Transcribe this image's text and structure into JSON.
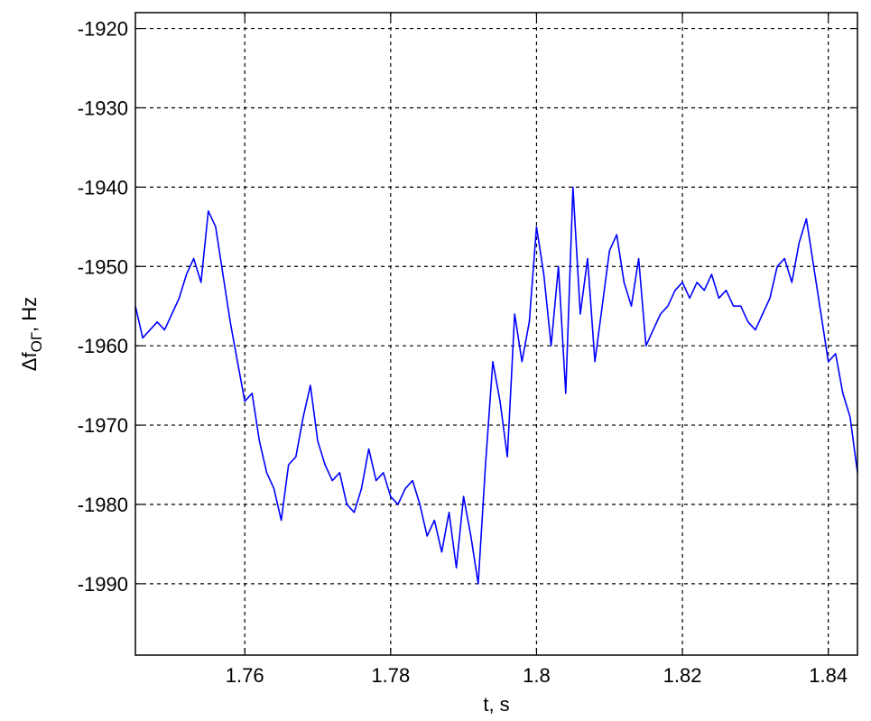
{
  "chart_data": {
    "type": "line",
    "xlabel": "t, s",
    "ylabel_main": "Δf",
    "ylabel_sub": "OГ",
    "ylabel_tail": ", Hz",
    "xlim": [
      1.745,
      1.844
    ],
    "ylim": [
      -1999,
      -1918
    ],
    "xticks": [
      1.76,
      1.78,
      1.8,
      1.82,
      1.84
    ],
    "xtick_labels": [
      "1.76",
      "1.78",
      "1.8",
      "1.82",
      "1.84"
    ],
    "yticks": [
      -1920,
      -1930,
      -1940,
      -1950,
      -1960,
      -1970,
      -1980,
      -1990
    ],
    "ytick_labels": [
      "-1920",
      "-1930",
      "-1940",
      "-1950",
      "-1960",
      "-1970",
      "-1980",
      "-1990"
    ],
    "grid": true,
    "series_color": "#0000ff",
    "series": [
      {
        "x": [
          1.745,
          1.746,
          1.747,
          1.748,
          1.749,
          1.75,
          1.751,
          1.752,
          1.753,
          1.754,
          1.755,
          1.756,
          1.757,
          1.758,
          1.759,
          1.76,
          1.761,
          1.762,
          1.763,
          1.764,
          1.765,
          1.766,
          1.767,
          1.768,
          1.769,
          1.77,
          1.771,
          1.772,
          1.773,
          1.774,
          1.775,
          1.776,
          1.777,
          1.778,
          1.779,
          1.78,
          1.781,
          1.782,
          1.783,
          1.784,
          1.785,
          1.786,
          1.787,
          1.788,
          1.789,
          1.79,
          1.791,
          1.792,
          1.793,
          1.794,
          1.795,
          1.796,
          1.797,
          1.798,
          1.799,
          1.8,
          1.801,
          1.802,
          1.803,
          1.804,
          1.805,
          1.806,
          1.807,
          1.808,
          1.809,
          1.81,
          1.811,
          1.812,
          1.813,
          1.814,
          1.815,
          1.816,
          1.817,
          1.818,
          1.819,
          1.82,
          1.821,
          1.822,
          1.823,
          1.824,
          1.825,
          1.826,
          1.827,
          1.828,
          1.829,
          1.83,
          1.831,
          1.832,
          1.833,
          1.834,
          1.835,
          1.836,
          1.837,
          1.838,
          1.839,
          1.84,
          1.841,
          1.842,
          1.843,
          1.844
        ],
        "values": [
          -1955,
          -1959,
          -1958,
          -1957,
          -1958,
          -1956,
          -1954,
          -1951,
          -1949,
          -1952,
          -1943,
          -1945,
          -1951,
          -1957,
          -1962,
          -1967,
          -1966,
          -1972,
          -1976,
          -1978,
          -1982,
          -1975,
          -1974,
          -1969,
          -1965,
          -1972,
          -1975,
          -1977,
          -1976,
          -1980,
          -1981,
          -1978,
          -1973,
          -1977,
          -1976,
          -1979,
          -1980,
          -1978,
          -1977,
          -1980,
          -1984,
          -1982,
          -1986,
          -1981,
          -1988,
          -1979,
          -1984,
          -1990,
          -1975,
          -1962,
          -1967,
          -1974,
          -1956,
          -1962,
          -1957,
          -1945,
          -1951,
          -1960,
          -1950,
          -1966,
          -1940,
          -1956,
          -1949,
          -1962,
          -1955,
          -1948,
          -1946,
          -1952,
          -1955,
          -1949,
          -1960,
          -1958,
          -1956,
          -1955,
          -1953,
          -1952,
          -1954,
          -1952,
          -1953,
          -1951,
          -1954,
          -1953,
          -1955,
          -1955,
          -1957,
          -1958,
          -1956,
          -1954,
          -1950,
          -1949,
          -1952,
          -1947,
          -1944,
          -1950,
          -1956,
          -1962,
          -1961,
          -1966,
          -1969,
          -1976
        ]
      }
    ]
  }
}
